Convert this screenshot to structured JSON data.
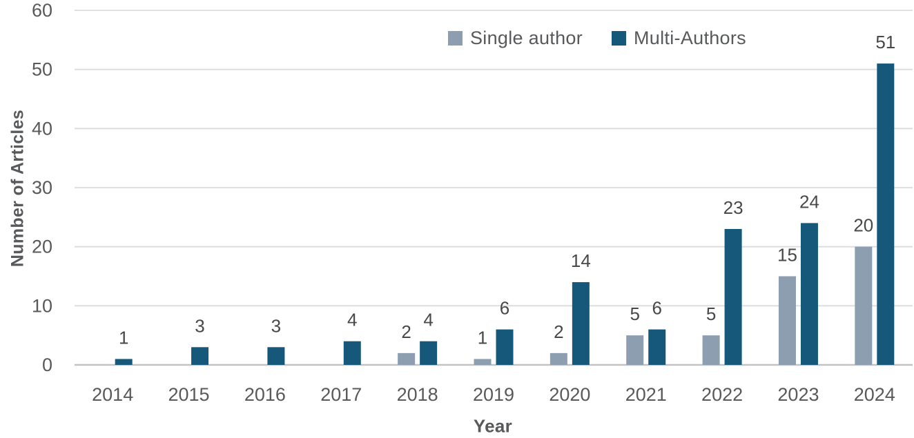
{
  "chart_data": {
    "type": "bar",
    "title": "",
    "xlabel": "Year",
    "ylabel": "Number of Articles",
    "categories": [
      "2014",
      "2015",
      "2016",
      "2017",
      "2018",
      "2019",
      "2020",
      "2021",
      "2022",
      "2023",
      "2024"
    ],
    "series": [
      {
        "name": "Single author",
        "color": "#8C9EAF",
        "values": [
          0,
          0,
          0,
          0,
          2,
          1,
          2,
          5,
          5,
          15,
          20
        ]
      },
      {
        "name": "Multi-Authors",
        "color": "#15587A",
        "values": [
          1,
          3,
          3,
          4,
          4,
          6,
          14,
          6,
          23,
          24,
          51
        ]
      }
    ],
    "ylim": [
      0,
      60
    ],
    "yticks": [
      0,
      10,
      20,
      30,
      40,
      50,
      60
    ],
    "grid": true,
    "legend_position": "top-center",
    "bar_labels": true,
    "colors": {
      "gridline": "#DBDBDB",
      "axis_line": "#C2C2C2",
      "tick_label": "#58595B",
      "data_label": "#464849",
      "background": "#FFFFFF"
    }
  }
}
